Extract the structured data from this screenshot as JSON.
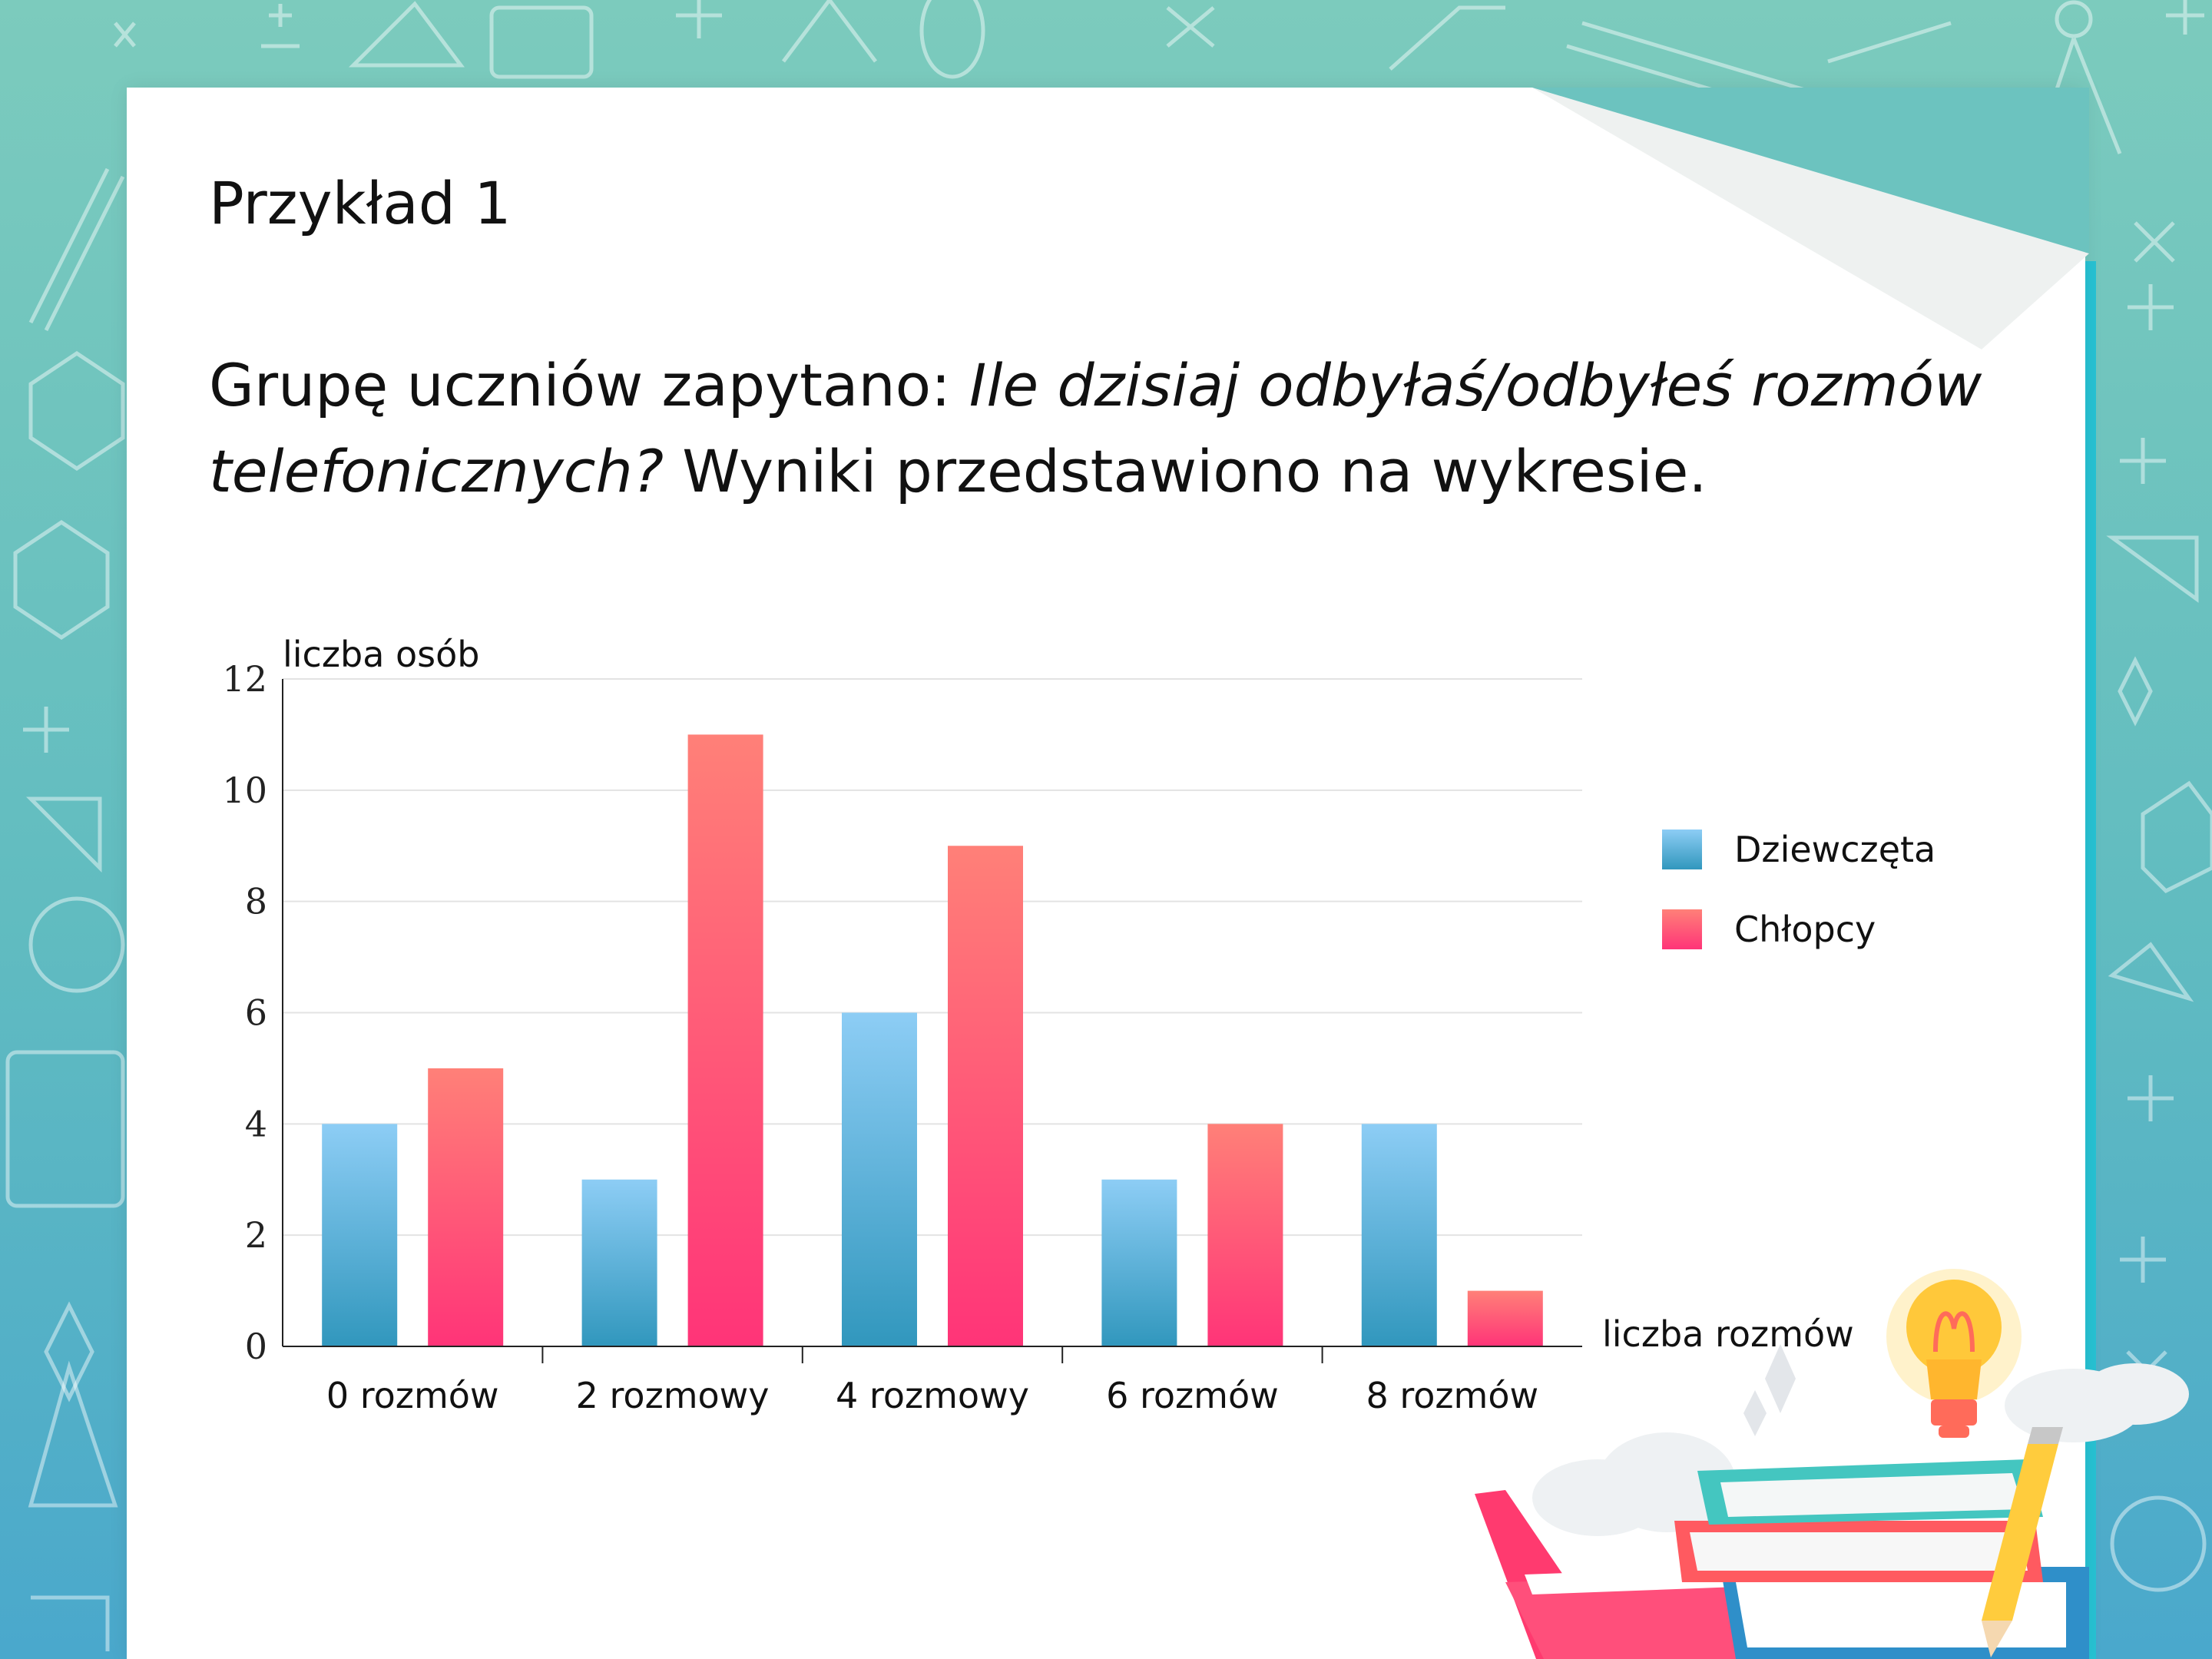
{
  "slide": {
    "title": "Przykład 1",
    "question_prefix": "Grupę uczniów zapytano: ",
    "question_italic": "Ile dzisiaj odbyłaś/odbyłeś rozmów telefonicznych?",
    "question_suffix": " Wyniki przedstawiono na wykresie."
  },
  "colors": {
    "girls_top": "#8dcdf5",
    "girls_bottom": "#3197bd",
    "boys_top": "#ff8078",
    "boys_bottom": "#ff3478",
    "grid": "#e3e3e3",
    "axis": "#222222"
  },
  "chart_data": {
    "type": "bar",
    "categories": [
      "0 rozmów",
      "2 rozmowy",
      "4 rozmowy",
      "6 rozmów",
      "8 rozmów"
    ],
    "series": [
      {
        "name": "Dziewczęta",
        "values": [
          4,
          3,
          6,
          3,
          4
        ]
      },
      {
        "name": "Chłopcy",
        "values": [
          5,
          11,
          9,
          4,
          1
        ]
      }
    ],
    "ylabel": "liczba osób",
    "xlabel": "liczba rozmów",
    "ylim": [
      0,
      12
    ],
    "yticks": [
      0,
      2,
      4,
      6,
      8,
      10,
      12
    ],
    "grid": true,
    "legend": "right"
  }
}
